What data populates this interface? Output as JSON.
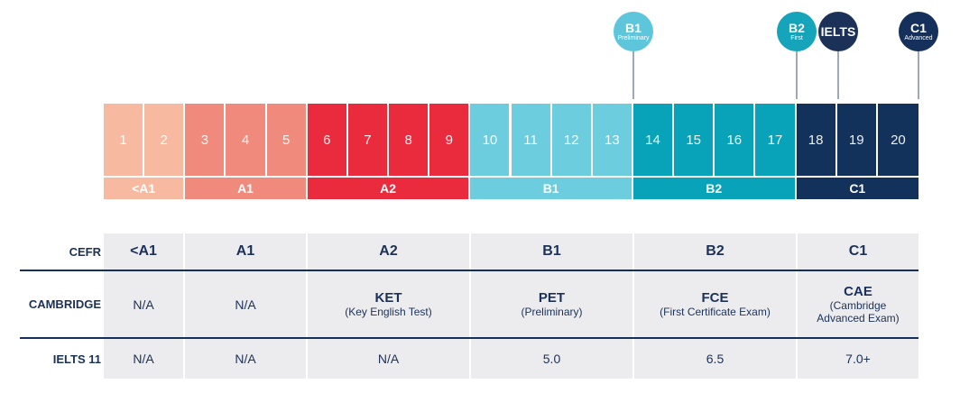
{
  "markers": [
    {
      "id": "b1-preliminary",
      "title": "B1",
      "subtitle": "Preliminary",
      "color": "#5ec6da"
    },
    {
      "id": "b2-first",
      "title": "B2",
      "subtitle": "First",
      "color": "#16a4bb"
    },
    {
      "id": "ielts",
      "title": "IELTS",
      "subtitle": "",
      "color": "#1b3158"
    },
    {
      "id": "c1-advanced",
      "title": "C1",
      "subtitle": "Advanced",
      "color": "#15305a"
    }
  ],
  "scale": {
    "scores": [
      "1",
      "2",
      "3",
      "4",
      "5",
      "6",
      "7",
      "8",
      "9",
      "10",
      "11",
      "12",
      "13",
      "14",
      "15",
      "16",
      "17",
      "18",
      "19",
      "20"
    ],
    "bands": [
      {
        "label": "<A1",
        "from": 1,
        "to": 2,
        "color": "#f7b99f"
      },
      {
        "label": "A1",
        "from": 3,
        "to": 5,
        "color": "#f08a7c"
      },
      {
        "label": "A2",
        "from": 6,
        "to": 9,
        "color": "#ea2b3d"
      },
      {
        "label": "B1",
        "from": 10,
        "to": 13,
        "color": "#6ccddf"
      },
      {
        "label": "B2",
        "from": 14,
        "to": 17,
        "color": "#08a3b8"
      },
      {
        "label": "C1",
        "from": 18,
        "to": 20,
        "color": "#13325b"
      }
    ]
  },
  "table": {
    "rows": [
      {
        "label": "CEFR",
        "cells": [
          {
            "main": "<A1"
          },
          {
            "main": "A1"
          },
          {
            "main": "A2"
          },
          {
            "main": "B1"
          },
          {
            "main": "B2"
          },
          {
            "main": "C1"
          }
        ]
      },
      {
        "label": "CAMBRIDGE",
        "cells": [
          {
            "value": "N/A"
          },
          {
            "value": "N/A"
          },
          {
            "main": "KET",
            "sub": "(Key English Test)"
          },
          {
            "main": "PET",
            "sub": "(Preliminary)"
          },
          {
            "main": "FCE",
            "sub": "(First Certificate Exam)"
          },
          {
            "main": "CAE",
            "sub": "(Cambridge",
            "sub2": "Advanced Exam)"
          }
        ]
      },
      {
        "label": "IELTS 11",
        "cells": [
          {
            "value": "N/A"
          },
          {
            "value": "N/A"
          },
          {
            "value": "N/A"
          },
          {
            "value": "5.0"
          },
          {
            "value": "6.5"
          },
          {
            "value": "7.0+"
          }
        ]
      }
    ]
  }
}
